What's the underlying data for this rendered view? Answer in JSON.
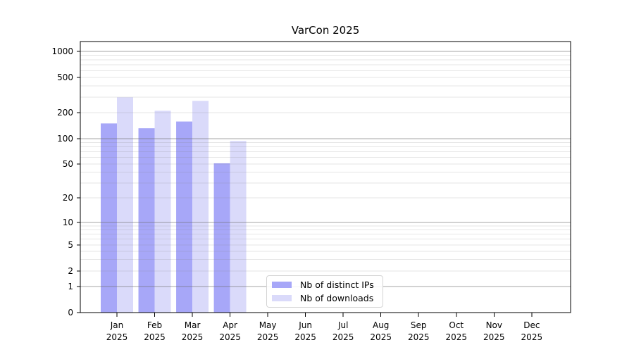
{
  "figure": {
    "background": "#ffffff"
  },
  "chart_data": {
    "type": "bar",
    "title": "VarCon 2025",
    "xlabel": "",
    "ylabel": "",
    "y_scale": "log-like (labeled ticks 0,1,2,5,10,20,50,100,200,500,1000)",
    "y_ticks": [
      0,
      1,
      2,
      5,
      10,
      20,
      50,
      100,
      200,
      500,
      1000
    ],
    "y_tick_labels": [
      "0",
      "1",
      "2",
      "5",
      "10",
      "20",
      "50",
      "100",
      "200",
      "500",
      "1000"
    ],
    "categories": [
      "Jan",
      "Feb",
      "Mar",
      "Apr",
      "May",
      "Jun",
      "Jul",
      "Aug",
      "Sep",
      "Oct",
      "Nov",
      "Dec"
    ],
    "category_year": "2025",
    "series": [
      {
        "name": "Nb of distinct IPs",
        "color": "#a7a7f8",
        "values": [
          150,
          132,
          158,
          51,
          null,
          null,
          null,
          null,
          null,
          null,
          null,
          null
        ]
      },
      {
        "name": "Nb of downloads",
        "color": "#dadafa",
        "values": [
          298,
          210,
          272,
          94,
          null,
          null,
          null,
          null,
          null,
          null,
          null,
          null
        ]
      }
    ],
    "grid": {
      "visible": true,
      "drawn_over_bars": true,
      "major_rgba": "rgba(110,110,110,0.62)",
      "minor_rgba": "rgba(128,128,128,0.20)"
    },
    "axes": {
      "spine_color": "#000000",
      "tick_color": "#000000",
      "tick_label_color": "#000000",
      "tick_label_size": 12
    },
    "legend": {
      "position": "bottom-center",
      "border_color": "#d4d4d4",
      "background": "#ffffff"
    }
  }
}
